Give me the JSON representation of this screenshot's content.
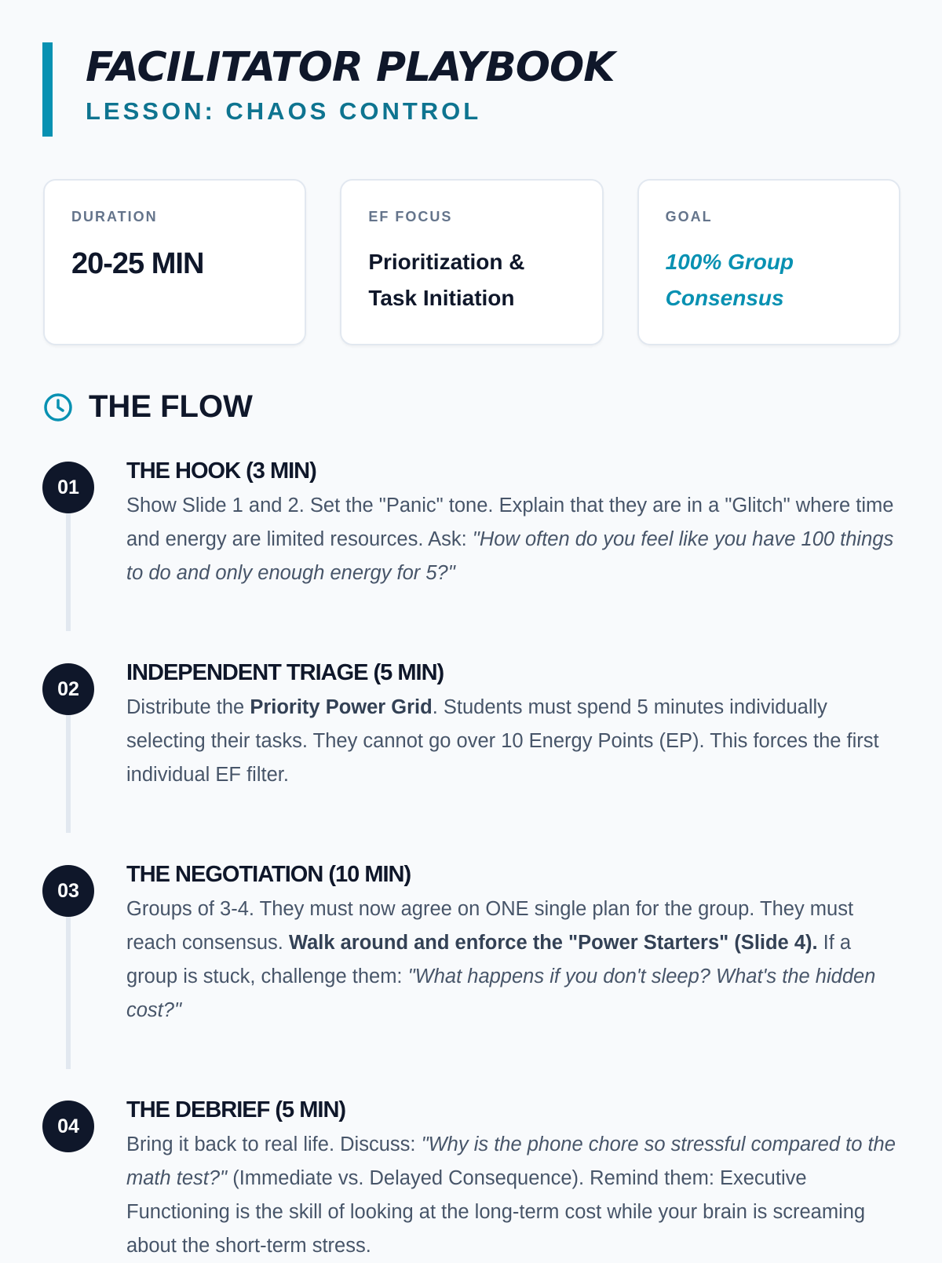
{
  "header": {
    "title": "FACILITATOR PLAYBOOK",
    "subtitle": "LESSON: CHAOS CONTROL"
  },
  "cards": [
    {
      "label": "DURATION",
      "value": "20-25 MIN"
    },
    {
      "label": "EF FOCUS",
      "value": "Prioritization & Task Initiation"
    },
    {
      "label": "GOAL",
      "value": "100% Group Consensus"
    }
  ],
  "flow": {
    "heading": "THE FLOW",
    "icon": "clock-icon",
    "steps": [
      {
        "num": "01",
        "title": "THE HOOK (3 MIN)",
        "t1": "Show Slide 1 and 2. Set the \"Panic\" tone. Explain that they are in a \"Glitch\" where time and energy are limited resources. Ask: ",
        "i1": "\"How often do you feel like you have 100 things to do and only enough energy for 5?\""
      },
      {
        "num": "02",
        "title": "INDEPENDENT TRIAGE (5 MIN)",
        "t1": "Distribute the ",
        "b1": "Priority Power Grid",
        "t2": ". Students must spend 5 minutes individually selecting their tasks. They cannot go over 10 Energy Points (EP). This forces the first individual EF filter."
      },
      {
        "num": "03",
        "title": "THE NEGOTIATION (10 MIN)",
        "t1": "Groups of 3-4. They must now agree on ONE single plan for the group. They must reach consensus. ",
        "b1": "Walk around and enforce the \"Power Starters\" (Slide 4).",
        "t2": " If a group is stuck, challenge them: ",
        "i1": "\"What happens if you don't sleep? What's the hidden cost?\""
      },
      {
        "num": "04",
        "title": "THE DEBRIEF (5 MIN)",
        "t1": "Bring it back to real life. Discuss: ",
        "i1": "\"Why is the phone chore so stressful compared to the math test?\"",
        "t2": " (Immediate vs. Delayed Consequence). Remind them: Executive Functioning is the skill of looking at the long-term cost while your brain is screaming about the short-term stress."
      }
    ]
  },
  "colors": {
    "accent": "#0891b2",
    "dark": "#0f172a",
    "muted": "#475569"
  }
}
